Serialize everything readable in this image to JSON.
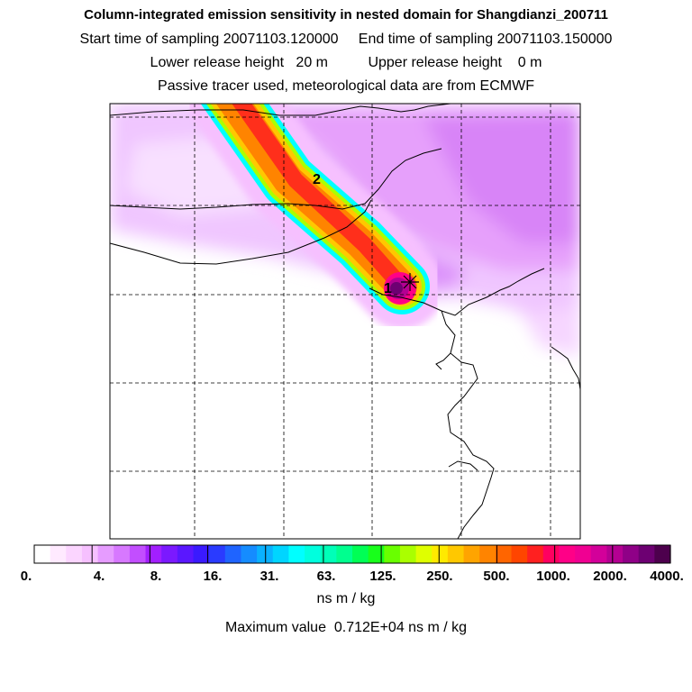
{
  "title": {
    "main": "Column-integrated emission sensitivity in nested domain for Shangdianzi_200711",
    "line2": "Start time of sampling 20071103.120000     End time of sampling 20071103.150000",
    "line3": "Lower release height   20 m          Upper release height    0 m",
    "line4": "Passive tracer used, meteorological data are from ECMWF"
  },
  "markers": [
    {
      "label": "1"
    },
    {
      "label": "2"
    }
  ],
  "colorbar": {
    "ticks": [
      "0.",
      "4.",
      "8.",
      "16.",
      "31.",
      "63.",
      "125.",
      "250.",
      "500.",
      "1000.",
      "2000.",
      "4000."
    ],
    "colors": [
      "#ffffff",
      "#ffeaff",
      "#fbd5ff",
      "#f6c0ff",
      "#e69cff",
      "#d778ff",
      "#c24eff",
      "#a21fff",
      "#7b19ff",
      "#5a17ff",
      "#3a1aff",
      "#2a3bff",
      "#1f64ff",
      "#158cff",
      "#0ab1ff",
      "#00d5ff",
      "#00ffff",
      "#00ffde",
      "#00ffb8",
      "#00ff8f",
      "#00ff55",
      "#18ff1b",
      "#69ff00",
      "#aaff00",
      "#dfff00",
      "#ffea00",
      "#ffc800",
      "#ffa400",
      "#ff8400",
      "#ff6500",
      "#ff4500",
      "#ff2020",
      "#ff0060",
      "#ff0087",
      "#f00092",
      "#d3009a",
      "#b40092",
      "#8f0087",
      "#6d0072",
      "#4d004d"
    ],
    "unit": "ns m / kg"
  },
  "max_value_text": "Maximum value  0.712E+04 ns m / kg"
}
